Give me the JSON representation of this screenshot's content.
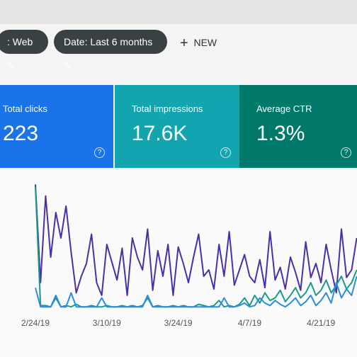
{
  "toolbar": {
    "chips": [
      ": Web",
      "Date: Last 6 months"
    ],
    "new": "NEW"
  },
  "cards": [
    {
      "label": "Total clicks",
      "value": "223",
      "color": "#1a73e8"
    },
    {
      "label": "Total impressions",
      "value": "17.6K",
      "color": "#12a4af"
    },
    {
      "label": "Average CTR",
      "value": "1.3%",
      "color": "#00796b"
    }
  ],
  "chart_data": {
    "type": "line",
    "categories": [
      "2/24/19",
      null,
      null,
      null,
      null,
      null,
      null,
      null,
      null,
      null,
      null,
      null,
      null,
      null,
      "3/10/19",
      null,
      null,
      null,
      null,
      null,
      null,
      null,
      null,
      null,
      null,
      null,
      null,
      null,
      "3/24/19",
      null,
      null,
      null,
      null,
      null,
      null,
      null,
      null,
      null,
      null,
      null,
      null,
      null,
      "4/7/19",
      null,
      null,
      null,
      null,
      null,
      null,
      null,
      null,
      null,
      null,
      null,
      null,
      null,
      "4/21/19",
      null,
      null,
      null,
      null,
      null,
      null,
      null
    ],
    "ylim": [
      0,
      100
    ],
    "series": [
      {
        "color": "#4a2fa8",
        "values": [
          97,
          20,
          88,
          40,
          75,
          55,
          80,
          44,
          12,
          25,
          35,
          58,
          20,
          10,
          50,
          36,
          22,
          47,
          10,
          55,
          40,
          30,
          62,
          14,
          45,
          25,
          50,
          10,
          48,
          35,
          20,
          40,
          58,
          25,
          30,
          15,
          50,
          25,
          60,
          18,
          30,
          42,
          25,
          20,
          38,
          16,
          60,
          22,
          32,
          15,
          40,
          28,
          14,
          52,
          24,
          35,
          20,
          50,
          30,
          12,
          62,
          24,
          30,
          55
        ]
      },
      {
        "color": "#1a9a8a",
        "values": [
          95,
          2,
          2,
          1,
          8,
          1,
          2,
          1,
          3,
          1,
          1,
          2,
          1,
          1,
          2,
          1,
          1,
          2,
          1,
          2,
          1,
          2,
          8,
          1,
          2,
          1,
          1,
          2,
          1,
          2,
          1,
          1,
          3,
          2,
          1,
          2,
          6,
          1,
          2,
          1,
          3,
          8,
          2,
          10,
          4,
          12,
          6,
          8,
          14,
          5,
          10,
          16,
          8,
          12,
          20,
          10,
          14,
          22,
          12,
          18,
          25,
          15,
          20,
          30
        ]
      },
      {
        "color": "#2a8ee0",
        "values": [
          16,
          1,
          1,
          1,
          10,
          1,
          1,
          12,
          1,
          1,
          1,
          1,
          1,
          8,
          1,
          1,
          1,
          1,
          1,
          1,
          1,
          1,
          10,
          1,
          1,
          1,
          1,
          1,
          1,
          1,
          1,
          1,
          1,
          1,
          1,
          1,
          1,
          8,
          1,
          1,
          2,
          4,
          1,
          2,
          8,
          4,
          2,
          6,
          3,
          1,
          4,
          8,
          2,
          5,
          10,
          2,
          6,
          12,
          4,
          20,
          8,
          15,
          10,
          25
        ]
      }
    ]
  }
}
